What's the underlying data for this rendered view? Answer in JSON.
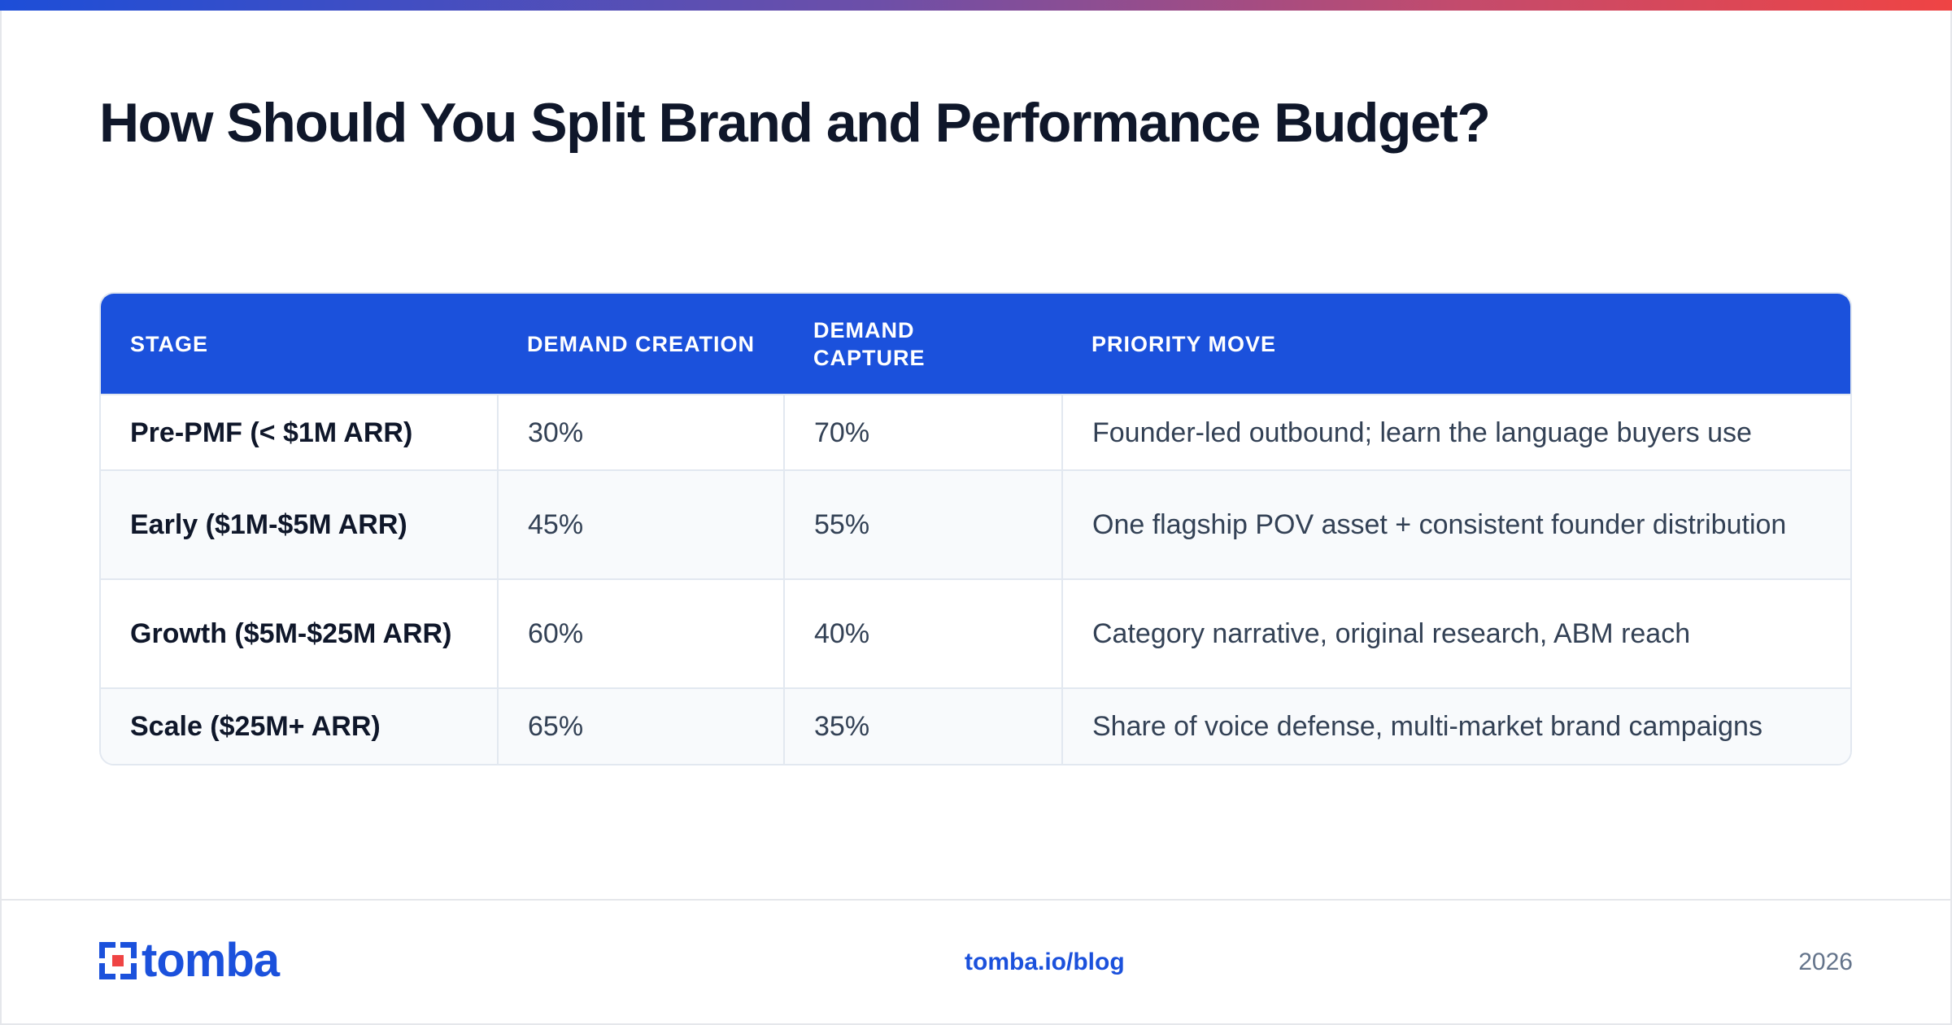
{
  "title": "How Should You Split Brand and Performance Budget?",
  "brand_colors": {
    "primary": "#1b51dc",
    "accent": "#ef4444",
    "text": "#0f172a"
  },
  "table": {
    "headers": [
      "STAGE",
      "DEMAND CREATION",
      "DEMAND CAPTURE",
      "PRIORITY MOVE"
    ],
    "rows": [
      {
        "stage": "Pre-PMF (< $1M ARR)",
        "creation": "30%",
        "capture": "70%",
        "move": "Founder-led outbound; learn the language buyers use"
      },
      {
        "stage": "Early ($1M-$5M ARR)",
        "creation": "45%",
        "capture": "55%",
        "move": "One flagship POV asset + consistent founder distribution"
      },
      {
        "stage": "Growth ($5M-$25M ARR)",
        "creation": "60%",
        "capture": "40%",
        "move": "Category narrative, original research, ABM reach"
      },
      {
        "stage": "Scale ($25M+ ARR)",
        "creation": "65%",
        "capture": "35%",
        "move": "Share of voice defense, multi-market brand campaigns"
      }
    ]
  },
  "footer": {
    "logo_text": "tomba",
    "link": "tomba.io/blog",
    "year": "2026"
  }
}
